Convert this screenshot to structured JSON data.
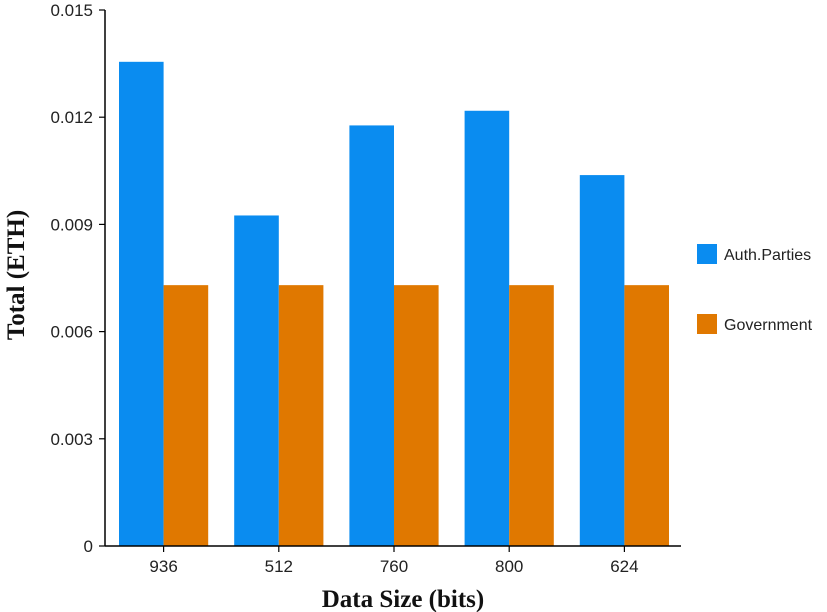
{
  "chart_data": {
    "type": "bar",
    "xlabel": "Data Size (bits)",
    "ylabel": "Total (ETH)",
    "categories": [
      "936",
      "512",
      "760",
      "800",
      "624"
    ],
    "series": [
      {
        "name": "Auth.Parties",
        "color": "#0a8cf0",
        "values": [
          0.01355,
          0.00925,
          0.01177,
          0.01218,
          0.01038
        ]
      },
      {
        "name": "Government",
        "color": "#e07800",
        "values": [
          0.0073,
          0.0073,
          0.0073,
          0.0073,
          0.0073
        ]
      }
    ],
    "ylim": [
      0,
      0.015
    ],
    "yticks": [
      "0",
      "0.003",
      "0.006",
      "0.009",
      "0.012",
      "0.015"
    ],
    "grid": false,
    "legend_position": "right"
  }
}
